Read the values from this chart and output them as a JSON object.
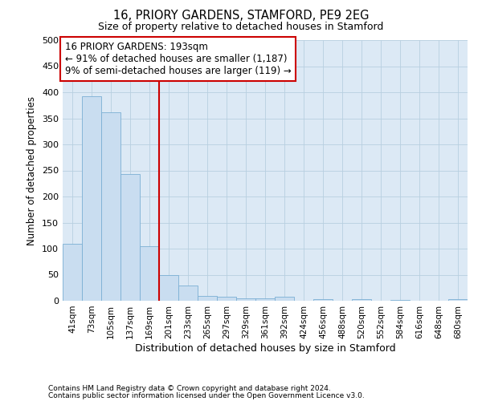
{
  "title": "16, PRIORY GARDENS, STAMFORD, PE9 2EG",
  "subtitle": "Size of property relative to detached houses in Stamford",
  "xlabel": "Distribution of detached houses by size in Stamford",
  "ylabel": "Number of detached properties",
  "bar_labels": [
    "41sqm",
    "73sqm",
    "105sqm",
    "137sqm",
    "169sqm",
    "201sqm",
    "233sqm",
    "265sqm",
    "297sqm",
    "329sqm",
    "361sqm",
    "392sqm",
    "424sqm",
    "456sqm",
    "488sqm",
    "520sqm",
    "552sqm",
    "584sqm",
    "616sqm",
    "648sqm",
    "680sqm"
  ],
  "bar_values": [
    110,
    393,
    362,
    243,
    105,
    50,
    30,
    10,
    8,
    5,
    5,
    7,
    0,
    3,
    0,
    3,
    0,
    2,
    0,
    0,
    3
  ],
  "bar_color": "#c9ddf0",
  "bar_edge_color": "#7bafd4",
  "vline_x": 5.0,
  "vline_color": "#cc0000",
  "annotation_line1": "16 PRIORY GARDENS: 193sqm",
  "annotation_line2": "← 91% of detached houses are smaller (1,187)",
  "annotation_line3": "9% of semi-detached houses are larger (119) →",
  "annotation_box_color": "#cc0000",
  "footer_line1": "Contains HM Land Registry data © Crown copyright and database right 2024.",
  "footer_line2": "Contains public sector information licensed under the Open Government Licence v3.0.",
  "background_color": "#ffffff",
  "plot_bg_color": "#dce9f5",
  "grid_color": "#b8cfe0",
  "ylim": [
    0,
    500
  ],
  "yticks": [
    0,
    50,
    100,
    150,
    200,
    250,
    300,
    350,
    400,
    450,
    500
  ],
  "title_fontsize": 10.5,
  "subtitle_fontsize": 9.0,
  "ylabel_fontsize": 8.5,
  "xlabel_fontsize": 9.0,
  "tick_fontsize": 8.0,
  "xtick_fontsize": 7.5,
  "footer_fontsize": 6.5,
  "annot_fontsize": 8.5
}
